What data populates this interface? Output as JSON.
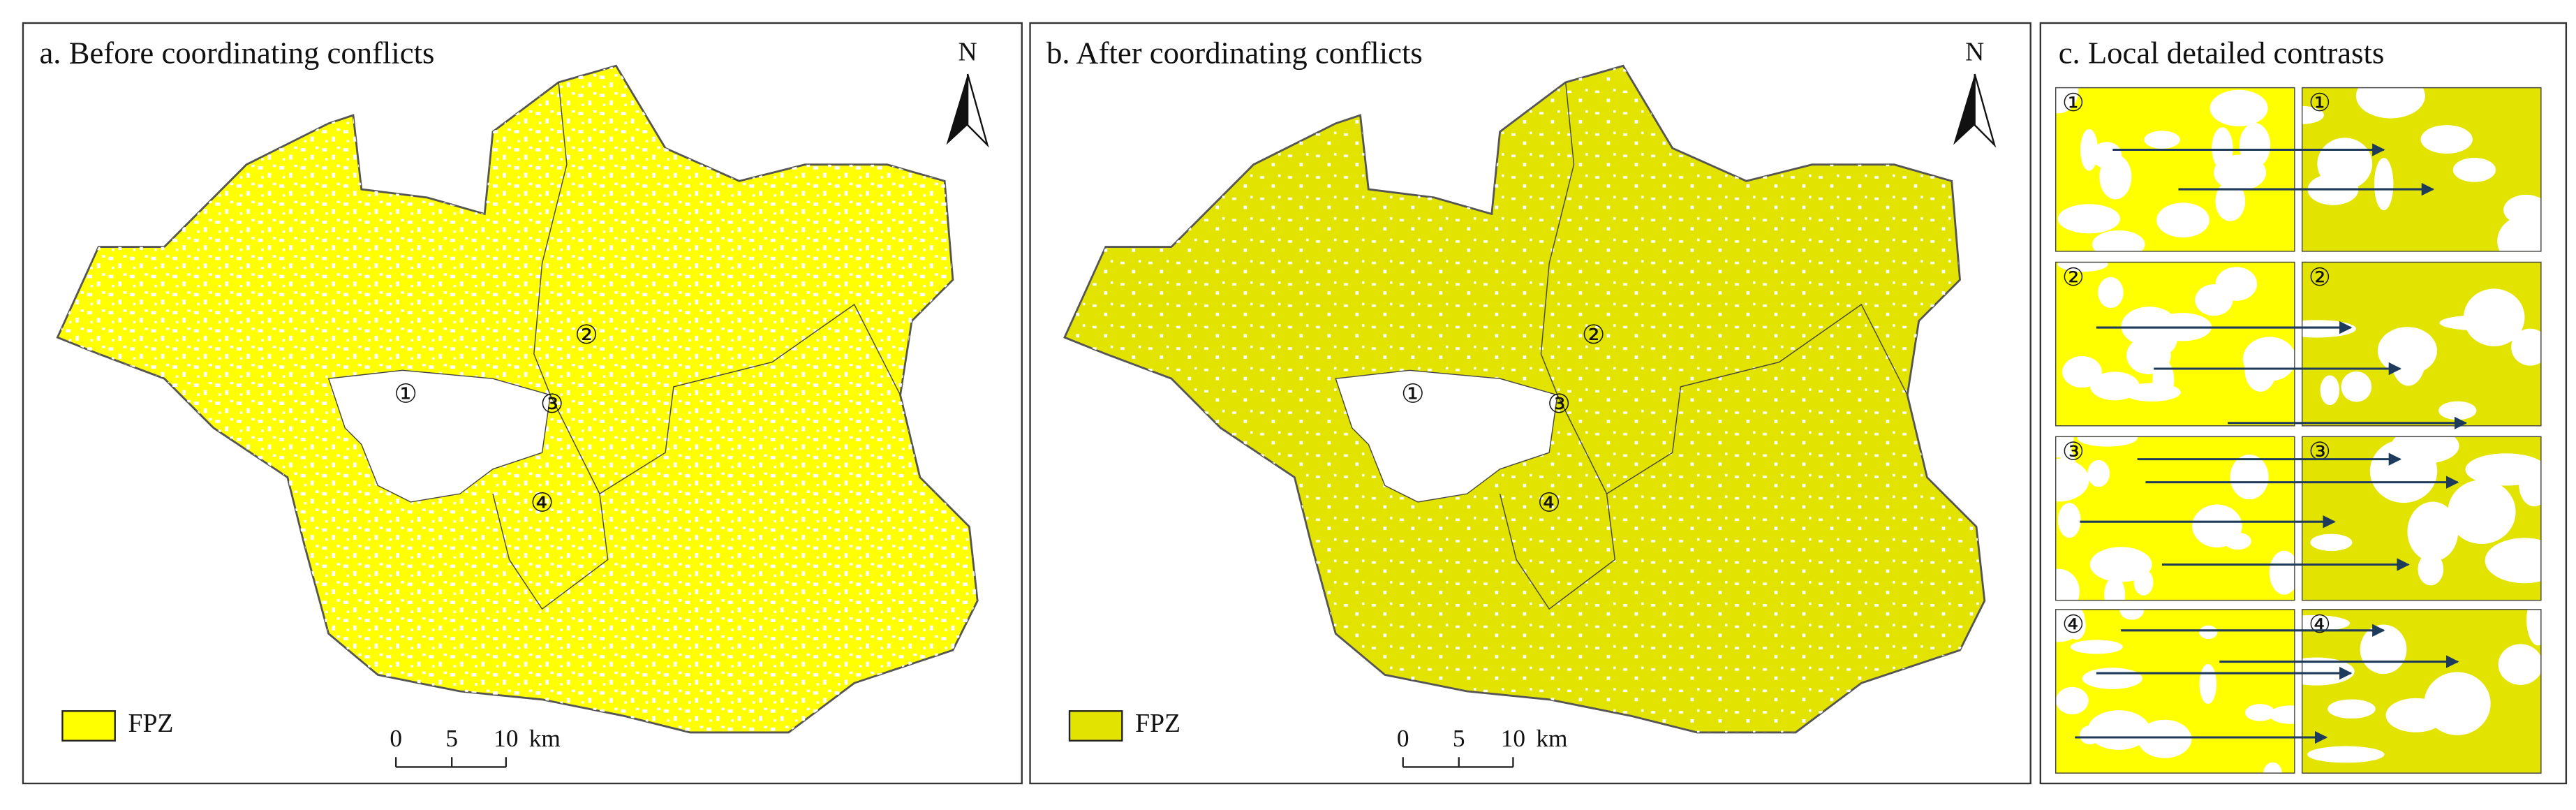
{
  "panels": [
    {
      "title": "a. Before coordinating conflicts",
      "north": "N",
      "legend": "FPZ",
      "scale_labels": [
        "0",
        "5",
        "10"
      ],
      "scale_unit": "km",
      "markers": [
        "①",
        "②",
        "③",
        "④"
      ]
    },
    {
      "title": "b.  After coordinating conflicts",
      "north": "N",
      "legend": "FPZ",
      "scale_labels": [
        "0",
        "5",
        "10"
      ],
      "scale_unit": "km",
      "markers": [
        "①",
        "②",
        "③",
        "④"
      ]
    }
  ],
  "detail": {
    "title": "c. Local detailed contrasts",
    "left_labels": [
      "①",
      "②",
      "③",
      "④"
    ],
    "right_labels": [
      "①",
      "②",
      "③",
      "④"
    ]
  }
}
